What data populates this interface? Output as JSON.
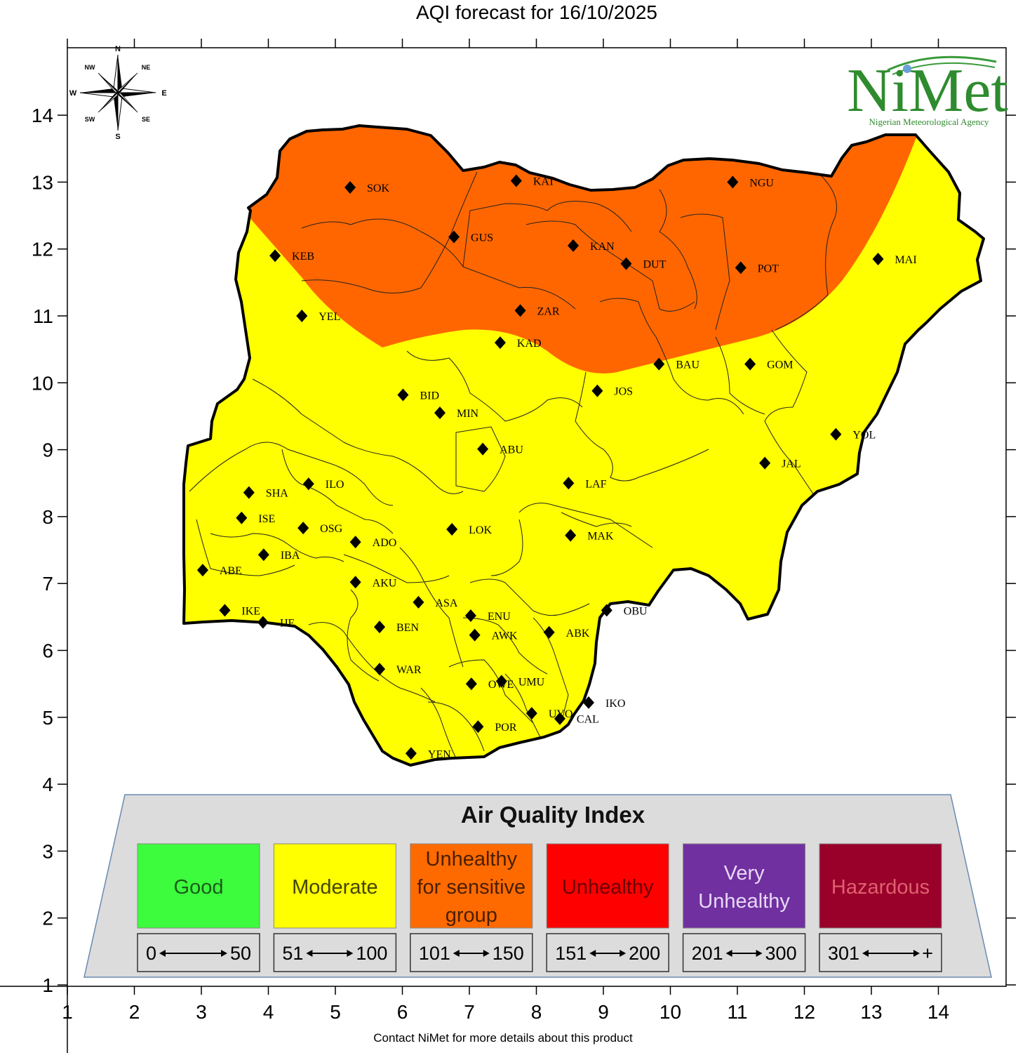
{
  "title": "AQI forecast for 16/10/2025",
  "footer": "Contact NiMet for more details about this product",
  "logo": {
    "name": "NiMet",
    "agency": "Nigerian Meteorological Agency"
  },
  "compass": {
    "n": "N",
    "s": "S",
    "e": "E",
    "w": "W",
    "ne": "NE",
    "nw": "NW",
    "se": "SE",
    "sw": "SW"
  },
  "axes": {
    "x_ticks": [
      "1",
      "2",
      "3",
      "4",
      "5",
      "6",
      "7",
      "8",
      "9",
      "10",
      "11",
      "12",
      "13",
      "14"
    ],
    "y_ticks": [
      "1",
      "2",
      "3",
      "4",
      "5",
      "6",
      "7",
      "8",
      "9",
      "10",
      "11",
      "12",
      "13",
      "14"
    ],
    "x_range": [
      1,
      15
    ],
    "y_range": [
      1,
      15
    ]
  },
  "forecast_zones": [
    {
      "category": "Unhealthy for sensitive group",
      "color": "#ff6600",
      "region": "north"
    },
    {
      "category": "Moderate",
      "color": "#ffff00",
      "region": "rest of country"
    }
  ],
  "stations": [
    {
      "code": "SOK",
      "lon": 5.22,
      "lat": 12.92
    },
    {
      "code": "KAT",
      "lon": 7.7,
      "lat": 13.02
    },
    {
      "code": "NGU",
      "lon": 10.93,
      "lat": 13.0
    },
    {
      "code": "GUS",
      "lon": 6.77,
      "lat": 12.18
    },
    {
      "code": "KAN",
      "lon": 8.55,
      "lat": 12.05
    },
    {
      "code": "DUT",
      "lon": 9.34,
      "lat": 11.78
    },
    {
      "code": "POT",
      "lon": 11.05,
      "lat": 11.72
    },
    {
      "code": "MAI",
      "lon": 13.1,
      "lat": 11.85
    },
    {
      "code": "KEB",
      "lon": 4.1,
      "lat": 11.9
    },
    {
      "code": "YEL",
      "lon": 4.5,
      "lat": 11.0
    },
    {
      "code": "ZAR",
      "lon": 7.76,
      "lat": 11.08
    },
    {
      "code": "KAD",
      "lon": 7.46,
      "lat": 10.6
    },
    {
      "code": "BAU",
      "lon": 9.83,
      "lat": 10.28
    },
    {
      "code": "GOM",
      "lon": 11.19,
      "lat": 10.28
    },
    {
      "code": "JOS",
      "lon": 8.91,
      "lat": 9.88
    },
    {
      "code": "BID",
      "lon": 6.01,
      "lat": 9.82
    },
    {
      "code": "MIN",
      "lon": 6.56,
      "lat": 9.55
    },
    {
      "code": "YOL",
      "lon": 12.47,
      "lat": 9.23
    },
    {
      "code": "ABU",
      "lon": 7.2,
      "lat": 9.01
    },
    {
      "code": "JAL",
      "lon": 11.41,
      "lat": 8.8
    },
    {
      "code": "ILO",
      "lon": 4.6,
      "lat": 8.49
    },
    {
      "code": "LAF",
      "lon": 8.48,
      "lat": 8.5
    },
    {
      "code": "SHA",
      "lon": 3.71,
      "lat": 8.36
    },
    {
      "code": "ISE",
      "lon": 3.6,
      "lat": 7.98
    },
    {
      "code": "OSG",
      "lon": 4.52,
      "lat": 7.83
    },
    {
      "code": "LOK",
      "lon": 6.74,
      "lat": 7.81
    },
    {
      "code": "MAK",
      "lon": 8.51,
      "lat": 7.72
    },
    {
      "code": "ADO",
      "lon": 5.3,
      "lat": 7.62
    },
    {
      "code": "IBA",
      "lon": 3.93,
      "lat": 7.43
    },
    {
      "code": "ABE",
      "lon": 3.02,
      "lat": 7.2
    },
    {
      "code": "AKU",
      "lon": 5.3,
      "lat": 7.02
    },
    {
      "code": "ASA",
      "lon": 6.24,
      "lat": 6.72
    },
    {
      "code": "IKE",
      "lon": 3.35,
      "lat": 6.6
    },
    {
      "code": "IJE",
      "lon": 3.92,
      "lat": 6.42
    },
    {
      "code": "ENU",
      "lon": 7.02,
      "lat": 6.52
    },
    {
      "code": "OBU",
      "lon": 9.05,
      "lat": 6.6
    },
    {
      "code": "BEN",
      "lon": 5.66,
      "lat": 6.35
    },
    {
      "code": "AWK",
      "lon": 7.08,
      "lat": 6.23
    },
    {
      "code": "ABK",
      "lon": 8.19,
      "lat": 6.27
    },
    {
      "code": "WAR",
      "lon": 5.66,
      "lat": 5.72
    },
    {
      "code": "OWE",
      "lon": 7.03,
      "lat": 5.5
    },
    {
      "code": "UMU",
      "lon": 7.48,
      "lat": 5.54
    },
    {
      "code": "IKO",
      "lon": 8.78,
      "lat": 5.22
    },
    {
      "code": "UYO",
      "lon": 7.93,
      "lat": 5.06
    },
    {
      "code": "CAL",
      "lon": 8.35,
      "lat": 4.98
    },
    {
      "code": "POR",
      "lon": 7.13,
      "lat": 4.86
    },
    {
      "code": "YEN",
      "lon": 6.13,
      "lat": 4.46
    }
  ],
  "legend": {
    "title": "Air Quality Index",
    "categories": [
      {
        "lines": [
          "Good"
        ],
        "range_low": "0",
        "range_high": "50",
        "color": "#3dfc3d",
        "text_color": "#1a5c1a"
      },
      {
        "lines": [
          "Moderate"
        ],
        "range_low": "51",
        "range_high": "100",
        "color": "#ffff00",
        "text_color": "#444400"
      },
      {
        "lines": [
          "Unhealthy",
          "for sensitive",
          "group"
        ],
        "range_low": "101",
        "range_high": "150",
        "color": "#ff6a00",
        "text_color": "#4a1e00"
      },
      {
        "lines": [
          "Unhealthy"
        ],
        "range_low": "151",
        "range_high": "200",
        "color": "#ff0000",
        "text_color": "#6a0000"
      },
      {
        "lines": [
          "Very",
          "Unhealthy"
        ],
        "range_low": "201",
        "range_high": "300",
        "color": "#7030a0",
        "text_color": "#e8d8f6"
      },
      {
        "lines": [
          "Hazardous"
        ],
        "range_low": "301",
        "range_high": "+",
        "color": "#99002a",
        "text_color": "#e06070"
      }
    ]
  }
}
